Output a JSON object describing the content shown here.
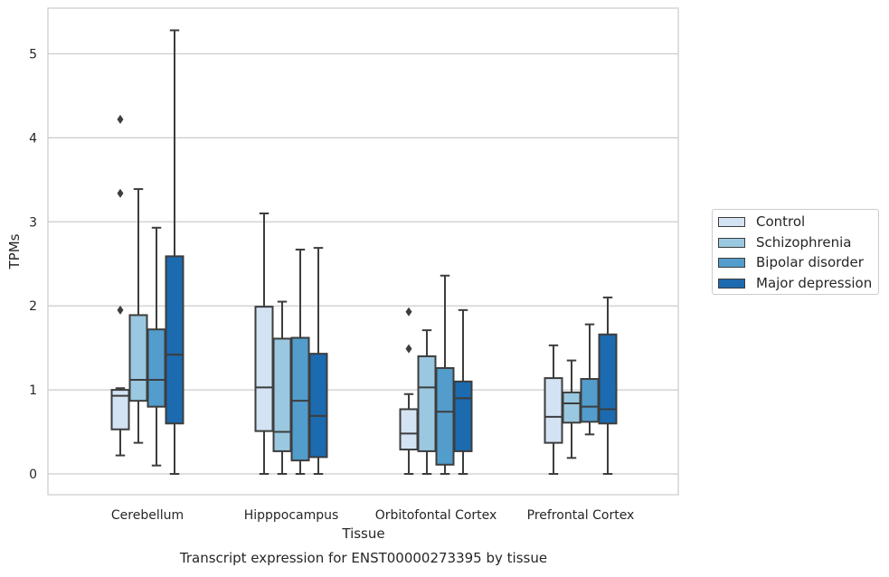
{
  "chart_data": {
    "type": "boxplot",
    "title": "Transcript expression for ENST00000273395 by tissue",
    "xlabel": "Tissue",
    "ylabel": "TPMs",
    "ylim": [
      -0.25,
      5.55
    ],
    "yticks": [
      "0",
      "1",
      "2",
      "3",
      "4",
      "5"
    ],
    "grid": "horizontal",
    "legend_position": "right",
    "categories": [
      "Cerebellum",
      "Hipppocampus",
      "Orbitofontal Cortex",
      "Prefrontal Cortex"
    ],
    "series": [
      {
        "name": "Control",
        "color": "#d3e3f3",
        "boxes": [
          {
            "whislo": 0.22,
            "q1": 0.53,
            "med": 0.93,
            "q3": 1.0,
            "whishi": 1.02,
            "fliers": [
              1.95,
              3.34,
              4.22
            ]
          },
          {
            "whislo": 0.0,
            "q1": 0.51,
            "med": 1.03,
            "q3": 1.99,
            "whishi": 3.1,
            "fliers": []
          },
          {
            "whislo": 0.0,
            "q1": 0.29,
            "med": 0.48,
            "q3": 0.77,
            "whishi": 0.95,
            "fliers": [
              1.49,
              1.93
            ]
          },
          {
            "whislo": 0.0,
            "q1": 0.37,
            "med": 0.68,
            "q3": 1.14,
            "whishi": 1.53,
            "fliers": []
          }
        ]
      },
      {
        "name": "Schizophrenia",
        "color": "#9ac8e0",
        "boxes": [
          {
            "whislo": 0.37,
            "q1": 0.87,
            "med": 1.12,
            "q3": 1.89,
            "whishi": 3.39,
            "fliers": []
          },
          {
            "whislo": 0.0,
            "q1": 0.27,
            "med": 0.5,
            "q3": 1.61,
            "whishi": 2.05,
            "fliers": []
          },
          {
            "whislo": 0.0,
            "q1": 0.27,
            "med": 1.03,
            "q3": 1.4,
            "whishi": 1.71,
            "fliers": []
          },
          {
            "whislo": 0.19,
            "q1": 0.61,
            "med": 0.84,
            "q3": 0.97,
            "whishi": 1.35,
            "fliers": []
          }
        ]
      },
      {
        "name": "Bipolar disorder",
        "color": "#529dcc",
        "boxes": [
          {
            "whislo": 0.1,
            "q1": 0.8,
            "med": 1.12,
            "q3": 1.72,
            "whishi": 2.93,
            "fliers": []
          },
          {
            "whislo": 0.0,
            "q1": 0.16,
            "med": 0.87,
            "q3": 1.62,
            "whishi": 2.67,
            "fliers": []
          },
          {
            "whislo": 0.0,
            "q1": 0.11,
            "med": 0.74,
            "q3": 1.26,
            "whishi": 2.36,
            "fliers": []
          },
          {
            "whislo": 0.47,
            "q1": 0.62,
            "med": 0.8,
            "q3": 1.13,
            "whishi": 1.78,
            "fliers": []
          }
        ]
      },
      {
        "name": "Major depression",
        "color": "#1c6aaf",
        "boxes": [
          {
            "whislo": 0.0,
            "q1": 0.6,
            "med": 1.42,
            "q3": 2.59,
            "whishi": 5.28,
            "fliers": []
          },
          {
            "whislo": 0.0,
            "q1": 0.2,
            "med": 0.69,
            "q3": 1.43,
            "whishi": 2.69,
            "fliers": []
          },
          {
            "whislo": 0.0,
            "q1": 0.27,
            "med": 0.9,
            "q3": 1.1,
            "whishi": 1.95,
            "fliers": []
          },
          {
            "whislo": 0.0,
            "q1": 0.6,
            "med": 0.77,
            "q3": 1.66,
            "whishi": 2.1,
            "fliers": []
          }
        ]
      }
    ]
  }
}
